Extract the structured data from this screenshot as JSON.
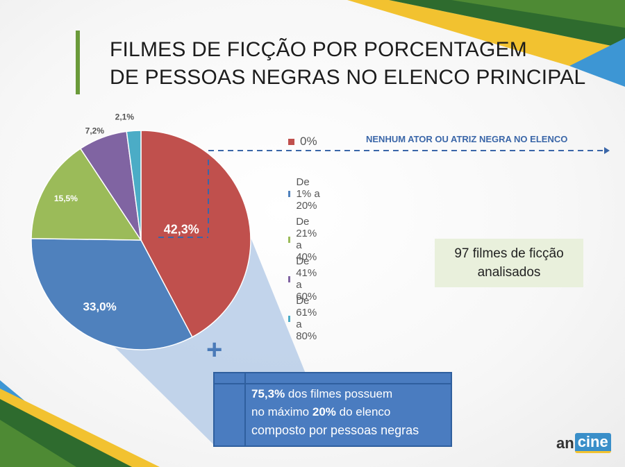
{
  "title": {
    "line1": "FILMES DE FICÇÃO POR PORCENTAGEM",
    "line2": "DE PESSOAS NEGRAS NO ELENCO PRINCIPAL"
  },
  "chart_data": {
    "type": "pie",
    "title": "FILMES DE FICÇÃO POR PORCENTAGEM DE PESSOAS NEGRAS NO ELENCO PRINCIPAL",
    "categories": [
      "0%",
      "De 1% a 20%",
      "De 21% a 40%",
      "De 41% a 60%",
      "De 61% a 80%"
    ],
    "values": [
      42.3,
      33.0,
      15.5,
      7.2,
      2.1
    ],
    "labels": [
      "42,3%",
      "33,0%",
      "15,5%",
      "7,2%",
      "2,1%"
    ],
    "colors": [
      "#c0504d",
      "#4f81bd",
      "#9bbb59",
      "#8064a2",
      "#4bacc6"
    ],
    "legend_position": "right"
  },
  "callout": "NENHUM ATOR OU ATRIZ NEGRA NO ELENCO",
  "info_box": {
    "line1": "97 filmes de ficção",
    "line2": "analisados"
  },
  "plus_symbol": "+",
  "summary": {
    "pct1": "75,3%",
    "text1": " dos filmes possuem",
    "text2a": "no máximo ",
    "pct2": "20%",
    "text2b": " do elenco",
    "text3": "composto por pessoas negras"
  },
  "logo": {
    "part1": "an",
    "part2": "cine"
  }
}
